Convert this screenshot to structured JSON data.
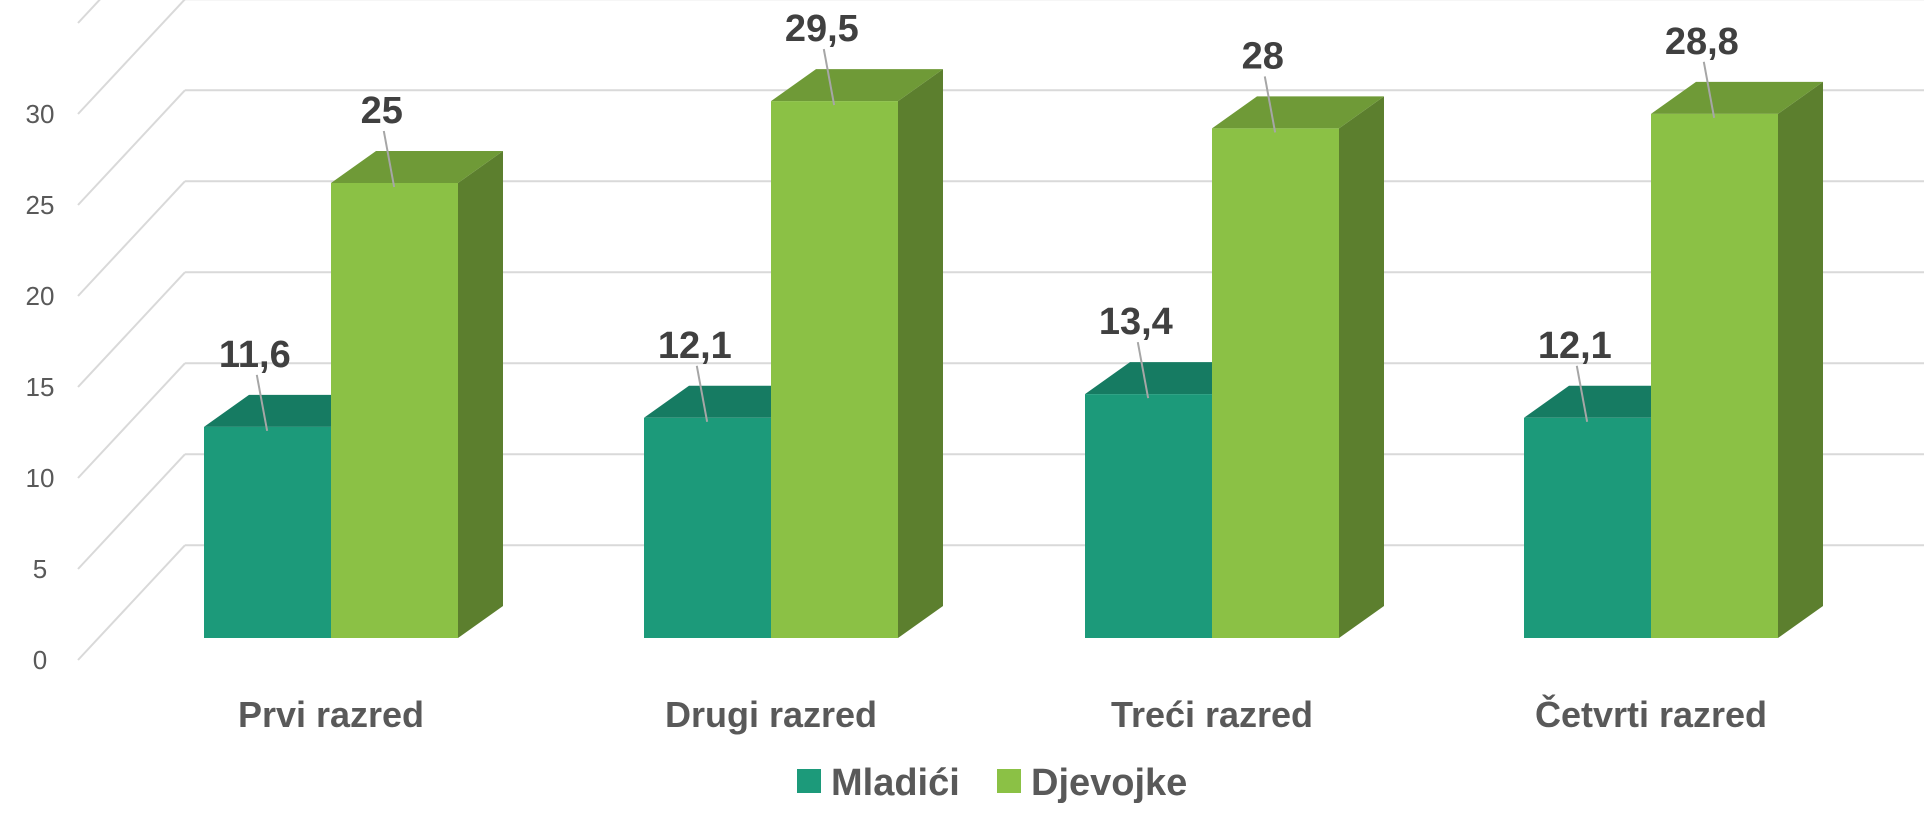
{
  "chart_data": {
    "type": "bar",
    "style": "3d-clustered-column",
    "categories": [
      "Prvi razred",
      "Drugi razred",
      "Treći razred",
      "Četvrti razred"
    ],
    "series": [
      {
        "name": "Mladići",
        "values": [
          11.6,
          12.1,
          13.4,
          12.1
        ],
        "labels": [
          "11,6",
          "12,1",
          "13,4",
          "12,1"
        ],
        "color": "#1c9a7a"
      },
      {
        "name": "Djevojke",
        "values": [
          25,
          29.5,
          28,
          28.8
        ],
        "labels": [
          "25",
          "29,5",
          "28",
          "28,8"
        ],
        "color": "#8bc145"
      }
    ],
    "yticks": [
      "0",
      "5",
      "10",
      "15",
      "20",
      "25",
      "30"
    ],
    "ylim": [
      0,
      35
    ],
    "grid": true,
    "legend": "bottom",
    "title": "",
    "xlabel": "",
    "ylabel": ""
  }
}
